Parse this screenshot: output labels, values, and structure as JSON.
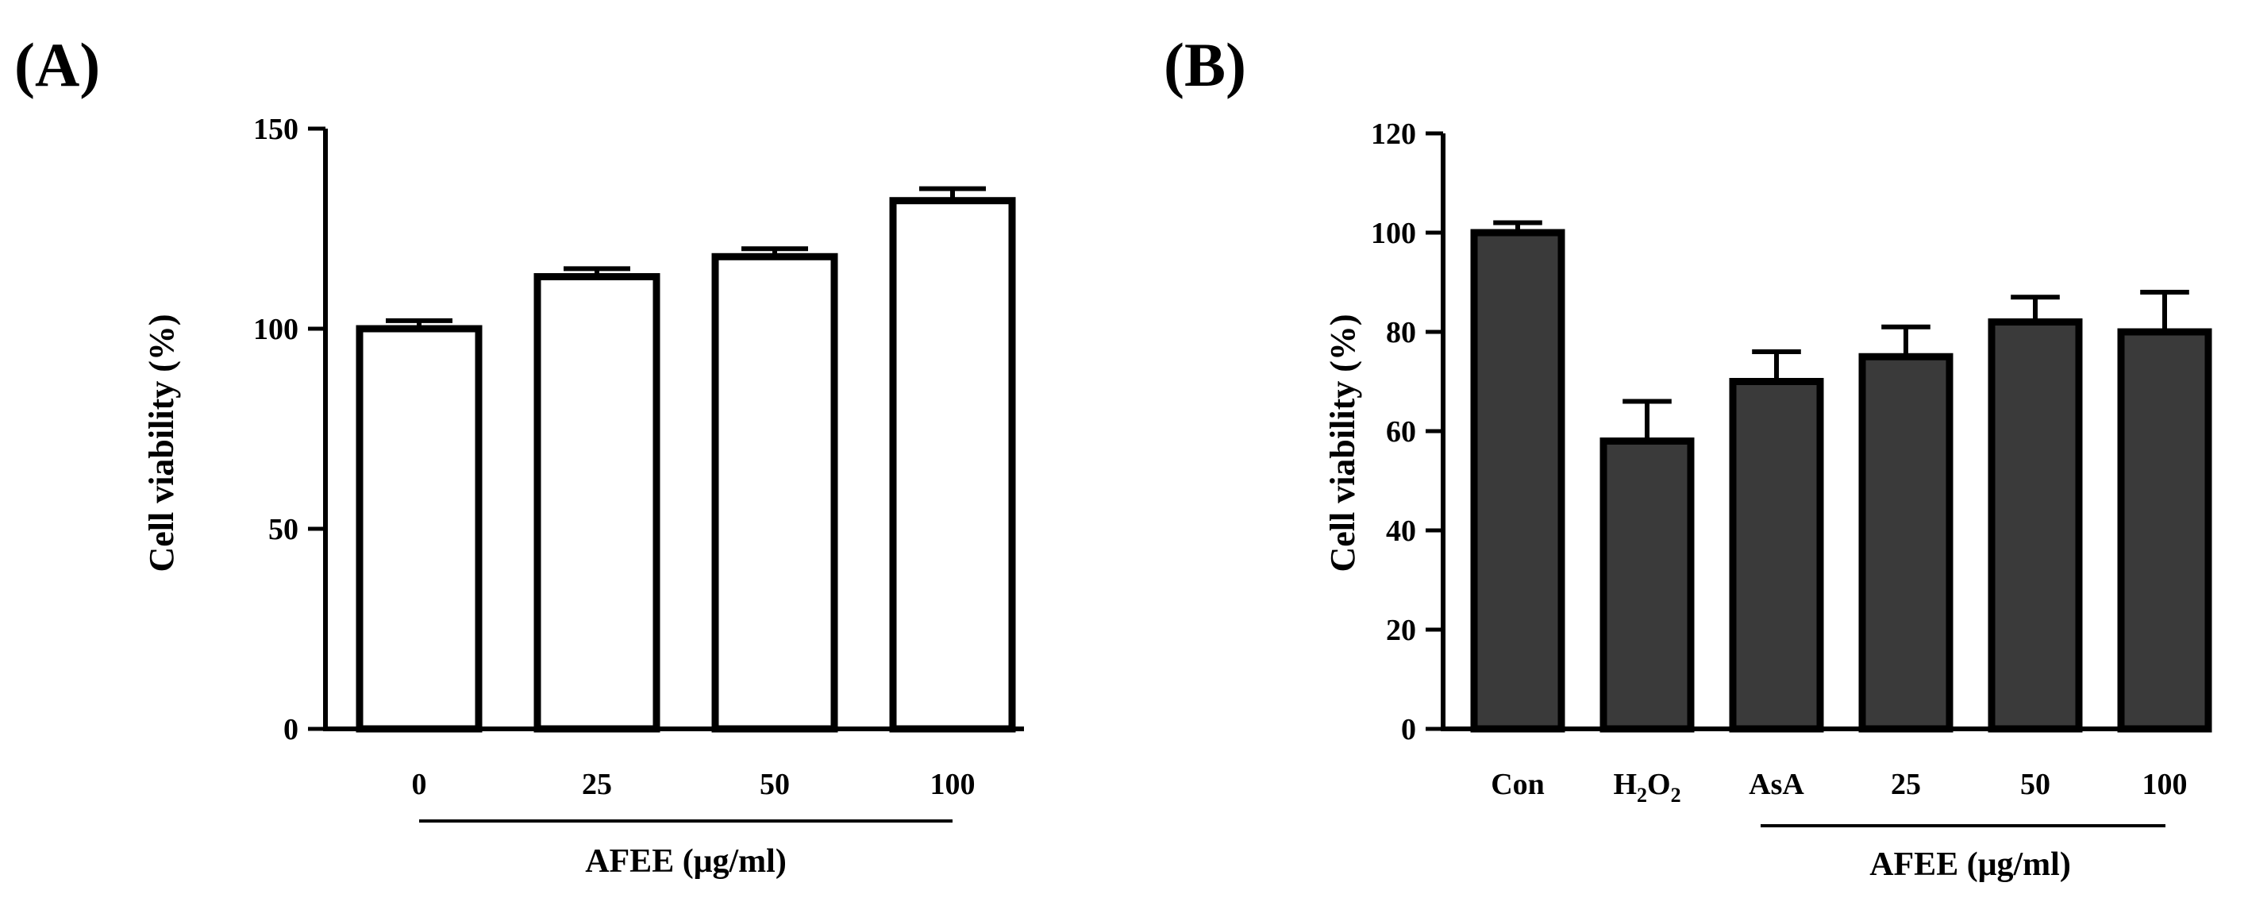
{
  "chart_data": [
    {
      "type": "bar",
      "panel_label": "(A)",
      "title": "",
      "categories": [
        "0",
        "25",
        "50",
        "100"
      ],
      "values": [
        100,
        113,
        118,
        132
      ],
      "errors": [
        2,
        2,
        2,
        3
      ],
      "bar_color": "#ffffff",
      "xlabel": "",
      "ylabel": "Cell viability (%)",
      "ylim": [
        0,
        150
      ],
      "yticks": [
        0,
        50,
        100,
        150
      ],
      "ytick_labels": [
        "0",
        "50",
        "100",
        "150"
      ],
      "group_label": "AFEE (μg/ml)",
      "group_span": [
        "0",
        "100"
      ]
    },
    {
      "type": "bar",
      "panel_label": "(B)",
      "title": "",
      "categories": [
        "Con",
        "H2O2",
        "AsA",
        "25",
        "50",
        "100"
      ],
      "values": [
        100,
        58,
        70,
        75,
        82,
        80
      ],
      "errors": [
        2,
        8,
        6,
        6,
        5,
        8
      ],
      "bar_color": "#3a3a3a",
      "xlabel": "",
      "ylabel": "Cell viability (%)",
      "ylim": [
        0,
        120
      ],
      "yticks": [
        0,
        20,
        40,
        60,
        80,
        100,
        120
      ],
      "ytick_labels": [
        "0",
        "20",
        "40",
        "60",
        "80",
        "100",
        "120"
      ],
      "group_label": "AFEE (μg/ml)",
      "group_span": [
        "AsA",
        "100"
      ]
    }
  ]
}
